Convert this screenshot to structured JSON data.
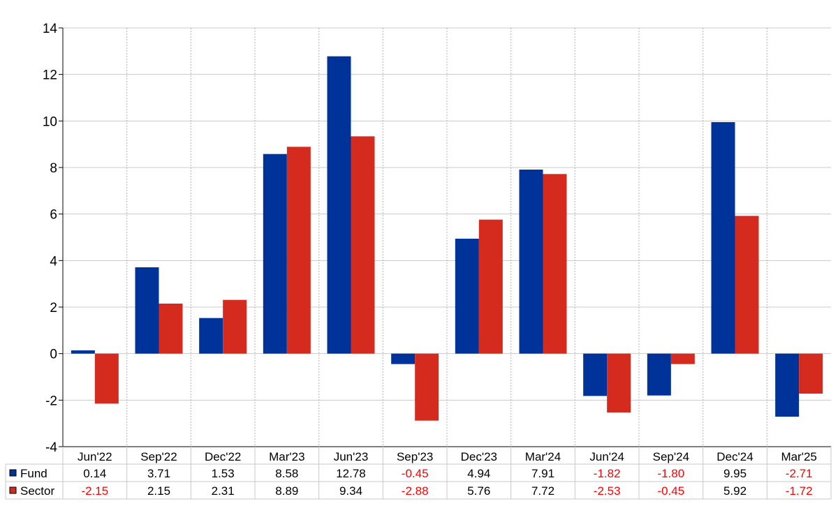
{
  "chart_data": {
    "type": "bar",
    "categories": [
      "Jun'22",
      "Sep'22",
      "Dec'22",
      "Mar'23",
      "Jun'23",
      "Sep'23",
      "Dec'23",
      "Mar'24",
      "Jun'24",
      "Sep'24",
      "Dec'24",
      "Mar'25"
    ],
    "series": [
      {
        "name": "Fund",
        "color": "#003399",
        "values": [
          0.14,
          3.71,
          1.53,
          8.58,
          12.78,
          -0.45,
          4.94,
          7.91,
          -1.82,
          -1.8,
          9.95,
          -2.71
        ],
        "labels": [
          "0.14",
          "3.71",
          "1.53",
          "8.58",
          "12.78",
          "-0.45",
          "4.94",
          "7.91",
          "-1.82",
          "-1.80",
          "9.95",
          "-2.71"
        ]
      },
      {
        "name": "Sector",
        "color": "#D52B1E",
        "values": [
          -2.15,
          2.15,
          2.31,
          8.89,
          9.34,
          -2.88,
          5.76,
          7.72,
          -2.53,
          -0.45,
          5.92,
          -1.72
        ],
        "labels": [
          "-2.15",
          "2.15",
          "2.31",
          "8.89",
          "9.34",
          "-2.88",
          "5.76",
          "7.72",
          "-2.53",
          "-0.45",
          "5.92",
          "-1.72"
        ]
      }
    ],
    "ylim": [
      -4,
      14
    ],
    "yticks": [
      -4,
      -2,
      0,
      2,
      4,
      6,
      8,
      10,
      12,
      14
    ],
    "ytick_labels": [
      "-4",
      "-2",
      "0",
      "2",
      "4",
      "6",
      "8",
      "10",
      "12",
      "14"
    ],
    "title": "",
    "xlabel": "",
    "ylabel": "",
    "grid": true,
    "legend": "data-table-below",
    "negative_value_color": "#FF0000",
    "positive_value_color": "#000000"
  }
}
